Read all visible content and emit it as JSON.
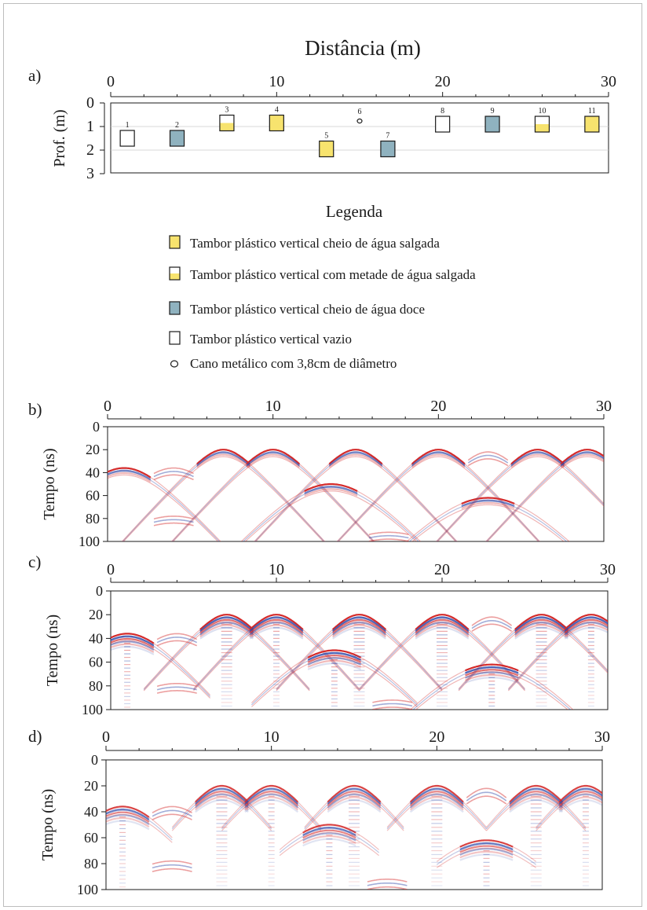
{
  "panel_a": {
    "letter": "a)",
    "title": "Distância (m)",
    "ylabel": "Prof. (m)",
    "x_ticks": [
      "0",
      "10",
      "20",
      "30"
    ],
    "y_ticks": [
      "0",
      "1",
      "2",
      "3"
    ]
  },
  "objects": [
    {
      "label": "1",
      "x": 1.0,
      "depth": 1.5,
      "type": "empty"
    },
    {
      "label": "2",
      "x": 4.0,
      "depth": 1.5,
      "type": "fresh"
    },
    {
      "label": "3",
      "x": 7.0,
      "depth": 0.85,
      "type": "half"
    },
    {
      "label": "4",
      "x": 10.0,
      "depth": 0.85,
      "type": "salt"
    },
    {
      "label": "5",
      "x": 13.0,
      "depth": 1.95,
      "type": "salt"
    },
    {
      "label": "6",
      "x": 15.0,
      "depth": 0.6,
      "type": "pipe"
    },
    {
      "label": "7",
      "x": 16.7,
      "depth": 1.95,
      "type": "fresh"
    },
    {
      "label": "8",
      "x": 20.0,
      "depth": 0.9,
      "type": "empty"
    },
    {
      "label": "9",
      "x": 23.0,
      "depth": 0.9,
      "type": "fresh"
    },
    {
      "label": "10",
      "x": 26.0,
      "depth": 0.9,
      "type": "half"
    },
    {
      "label": "11",
      "x": 29.0,
      "depth": 0.9,
      "type": "salt"
    }
  ],
  "legend": {
    "title": "Legenda",
    "items": [
      {
        "type": "salt",
        "text": "Tambor plástico vertical cheio de água salgada"
      },
      {
        "type": "half",
        "text": "Tambor plástico vertical com metade de água salgada"
      },
      {
        "type": "fresh",
        "text": "Tambor plástico vertical cheio de água doce"
      },
      {
        "type": "empty",
        "text": "Tambor plástico vertical vazio"
      },
      {
        "type": "pipe",
        "text": "Cano metálico com 3,8cm de diâmetro"
      }
    ]
  },
  "sections": [
    {
      "letter": "b)",
      "ylabel": "Tempo (ns)",
      "x_ticks": [
        "0",
        "10",
        "20",
        "30"
      ],
      "y_ticks": [
        "0",
        "20",
        "40",
        "60",
        "80",
        "100"
      ]
    },
    {
      "letter": "c)",
      "ylabel": "Tempo (ns)",
      "x_ticks": [
        "0",
        "10",
        "20",
        "30"
      ],
      "y_ticks": [
        "0",
        "20",
        "40",
        "60",
        "80",
        "100"
      ]
    },
    {
      "letter": "d)",
      "ylabel": "Tempo (ns)",
      "x_ticks": [
        "0",
        "10",
        "20",
        "30"
      ],
      "y_ticks": [
        "0",
        "20",
        "40",
        "60",
        "80",
        "100"
      ]
    }
  ],
  "colors": {
    "salt": "#f7e36e",
    "fresh": "#8fb2bf",
    "empty": "#ffffff",
    "positive": "#d42a2a",
    "negative": "#2f49a8"
  },
  "hyperbolas": [
    {
      "x": 1.0,
      "t": 36
    },
    {
      "x": 7.0,
      "t": 20
    },
    {
      "x": 10.0,
      "t": 20
    },
    {
      "x": 13.5,
      "t": 50
    },
    {
      "x": 15.0,
      "t": 20
    },
    {
      "x": 20.0,
      "t": 20
    },
    {
      "x": 23.0,
      "t": 62
    },
    {
      "x": 26.0,
      "t": 20
    },
    {
      "x": 29.0,
      "t": 20
    }
  ],
  "weak_reflections": [
    {
      "x": 4.0,
      "t": 36
    },
    {
      "x": 4.0,
      "t": 78
    },
    {
      "x": 17.0,
      "t": 92
    },
    {
      "x": 23.0,
      "t": 22
    }
  ]
}
